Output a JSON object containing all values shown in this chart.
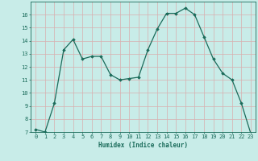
{
  "x": [
    0,
    1,
    2,
    3,
    4,
    5,
    6,
    7,
    8,
    9,
    10,
    11,
    12,
    13,
    14,
    15,
    16,
    17,
    18,
    19,
    20,
    21,
    22,
    23
  ],
  "y": [
    7.2,
    7.0,
    9.2,
    13.3,
    14.1,
    12.6,
    12.8,
    12.8,
    11.4,
    11.0,
    11.1,
    11.2,
    13.3,
    14.9,
    16.1,
    16.1,
    16.5,
    16.0,
    14.3,
    12.6,
    11.5,
    11.0,
    9.2,
    6.9
  ],
  "line_color": "#1a6b5a",
  "marker": "D",
  "marker_size": 1.8,
  "linewidth": 0.9,
  "bg_color": "#c8ece8",
  "grid_color": "#d9aeae",
  "xlabel": "Humidex (Indice chaleur)",
  "xlim_min": -0.5,
  "xlim_max": 23.5,
  "ylim_min": 7,
  "ylim_max": 17,
  "yticks": [
    7,
    8,
    9,
    10,
    11,
    12,
    13,
    14,
    15,
    16
  ],
  "xticks": [
    0,
    1,
    2,
    3,
    4,
    5,
    6,
    7,
    8,
    9,
    10,
    11,
    12,
    13,
    14,
    15,
    16,
    17,
    18,
    19,
    20,
    21,
    22,
    23
  ],
  "xlabel_fontsize": 5.5,
  "tick_fontsize": 5.0,
  "tick_color": "#1a6b5a",
  "axis_color": "#1a6b5a",
  "grid_linewidth": 0.5
}
